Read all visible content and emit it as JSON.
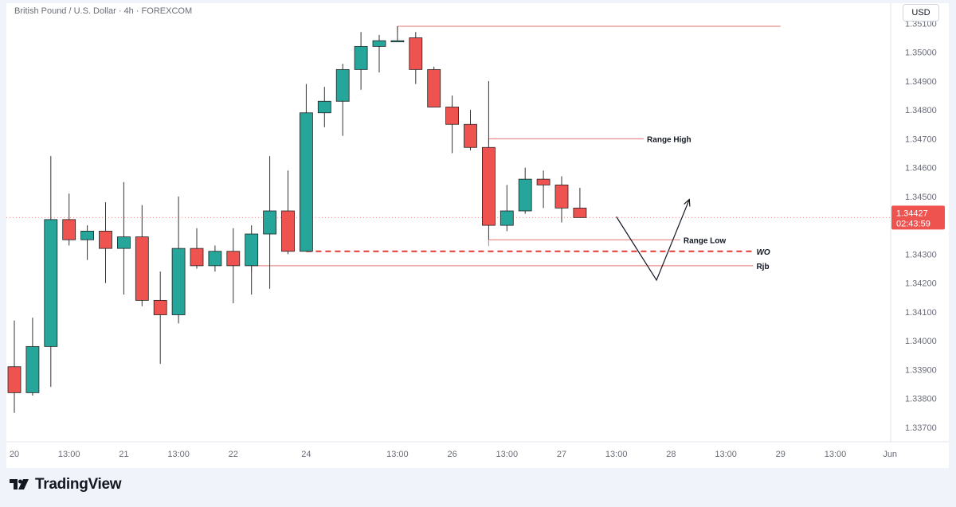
{
  "header": {
    "title": "British Pound / U.S. Dollar · 4h · FOREXCOM"
  },
  "currency_button": "USD",
  "brand": {
    "name": "TradingView"
  },
  "price_tag": {
    "price": "1.34427",
    "countdown": "02:43:59"
  },
  "colors": {
    "up": "#26a69a",
    "down": "#ef5350",
    "wick": "#333333",
    "level": "#e57373",
    "dashed": "#e53935",
    "price_tag_bg": "#ef5350",
    "axis_text": "#6a6d78"
  },
  "chart_data": {
    "type": "candlestick",
    "symbol": "British Pound / U.S. Dollar",
    "timeframe": "4h",
    "source": "FOREXCOM",
    "ylim": [
      1.3365,
      1.3517
    ],
    "y_ticks": [
      "1.33700",
      "1.33800",
      "1.33900",
      "1.34000",
      "1.34100",
      "1.34200",
      "1.34300",
      "1.34400",
      "1.34500",
      "1.34600",
      "1.34700",
      "1.34800",
      "1.34900",
      "1.35000",
      "1.35100"
    ],
    "x_ticks": [
      {
        "i": 0,
        "label": "20"
      },
      {
        "i": 3,
        "label": "13:00"
      },
      {
        "i": 6,
        "label": "21"
      },
      {
        "i": 9,
        "label": "13:00"
      },
      {
        "i": 12,
        "label": "22"
      },
      {
        "i": 16,
        "label": "24"
      },
      {
        "i": 21,
        "label": "13:00"
      },
      {
        "i": 24,
        "label": "26"
      },
      {
        "i": 27,
        "label": "13:00"
      },
      {
        "i": 30,
        "label": "27"
      },
      {
        "i": 33,
        "label": "13:00"
      },
      {
        "i": 36,
        "label": "28"
      },
      {
        "i": 39,
        "label": "13:00"
      },
      {
        "i": 42,
        "label": "29"
      },
      {
        "i": 45,
        "label": "13:00"
      },
      {
        "i": 48,
        "label": "Jun"
      }
    ],
    "candles": [
      {
        "o": 1.3391,
        "h": 1.3407,
        "l": 1.3375,
        "c": 1.3382
      },
      {
        "o": 1.3382,
        "h": 1.3408,
        "l": 1.3381,
        "c": 1.3398
      },
      {
        "o": 1.3398,
        "h": 1.3464,
        "l": 1.3384,
        "c": 1.3442
      },
      {
        "o": 1.3442,
        "h": 1.3451,
        "l": 1.3433,
        "c": 1.3435
      },
      {
        "o": 1.3435,
        "h": 1.344,
        "l": 1.3428,
        "c": 1.3438
      },
      {
        "o": 1.3438,
        "h": 1.3448,
        "l": 1.342,
        "c": 1.3432
      },
      {
        "o": 1.3432,
        "h": 1.3455,
        "l": 1.3416,
        "c": 1.3436
      },
      {
        "o": 1.3436,
        "h": 1.3447,
        "l": 1.3412,
        "c": 1.3414
      },
      {
        "o": 1.3414,
        "h": 1.3424,
        "l": 1.3392,
        "c": 1.3409
      },
      {
        "o": 1.3409,
        "h": 1.345,
        "l": 1.3406,
        "c": 1.3432
      },
      {
        "o": 1.3432,
        "h": 1.3439,
        "l": 1.3425,
        "c": 1.3426
      },
      {
        "o": 1.3426,
        "h": 1.3433,
        "l": 1.3424,
        "c": 1.3431
      },
      {
        "o": 1.3431,
        "h": 1.3439,
        "l": 1.3413,
        "c": 1.3426
      },
      {
        "o": 1.3426,
        "h": 1.344,
        "l": 1.3416,
        "c": 1.3437
      },
      {
        "o": 1.3437,
        "h": 1.3464,
        "l": 1.3418,
        "c": 1.3445
      },
      {
        "o": 1.3445,
        "h": 1.3459,
        "l": 1.343,
        "c": 1.3431
      },
      {
        "o": 1.3431,
        "h": 1.3489,
        "l": 1.3431,
        "c": 1.3479
      },
      {
        "o": 1.3479,
        "h": 1.3488,
        "l": 1.3474,
        "c": 1.3483
      },
      {
        "o": 1.3483,
        "h": 1.3496,
        "l": 1.3471,
        "c": 1.3494
      },
      {
        "o": 1.3494,
        "h": 1.3507,
        "l": 1.3487,
        "c": 1.3502
      },
      {
        "o": 1.3502,
        "h": 1.3506,
        "l": 1.3493,
        "c": 1.3504
      },
      {
        "o": 1.3504,
        "h": 1.3509,
        "l": 1.3504,
        "c": 1.3504
      },
      {
        "o": 1.3505,
        "h": 1.3507,
        "l": 1.3489,
        "c": 1.3494
      },
      {
        "o": 1.3494,
        "h": 1.3495,
        "l": 1.3481,
        "c": 1.3481
      },
      {
        "o": 1.3481,
        "h": 1.3485,
        "l": 1.3465,
        "c": 1.3475
      },
      {
        "o": 1.3475,
        "h": 1.348,
        "l": 1.3466,
        "c": 1.3467
      },
      {
        "o": 1.3467,
        "h": 1.349,
        "l": 1.3435,
        "c": 1.344
      },
      {
        "o": 1.344,
        "h": 1.3454,
        "l": 1.3438,
        "c": 1.3445
      },
      {
        "o": 1.3445,
        "h": 1.346,
        "l": 1.3444,
        "c": 1.3456
      },
      {
        "o": 1.3456,
        "h": 1.3459,
        "l": 1.3446,
        "c": 1.3454
      },
      {
        "o": 1.3454,
        "h": 1.3457,
        "l": 1.3441,
        "c": 1.3446
      },
      {
        "o": 1.3446,
        "h": 1.3453,
        "l": 1.3443,
        "c": 1.34427
      }
    ],
    "current_price": 1.34427,
    "levels": [
      {
        "name": "",
        "price": 1.3509,
        "from": 21,
        "to": 42,
        "style": "solid",
        "label": ""
      },
      {
        "name": "range-high",
        "price": 1.347,
        "from": 26,
        "to": 34.5,
        "style": "solid",
        "label": "Range High"
      },
      {
        "name": "range-low",
        "price": 1.3435,
        "from": 26,
        "to": 36.5,
        "style": "solid",
        "label": "Range Low"
      },
      {
        "name": "wo",
        "price": 1.3431,
        "from": 16,
        "to": 40.5,
        "style": "dashed",
        "label": "WO"
      },
      {
        "name": "rjb",
        "price": 1.3426,
        "from": 13,
        "to": 40.5,
        "style": "solid",
        "label": "Rjb"
      }
    ],
    "projection": [
      {
        "i": 33.0,
        "p": 1.3443
      },
      {
        "i": 35.2,
        "p": 1.3421
      },
      {
        "i": 37.0,
        "p": 1.3449
      }
    ]
  }
}
